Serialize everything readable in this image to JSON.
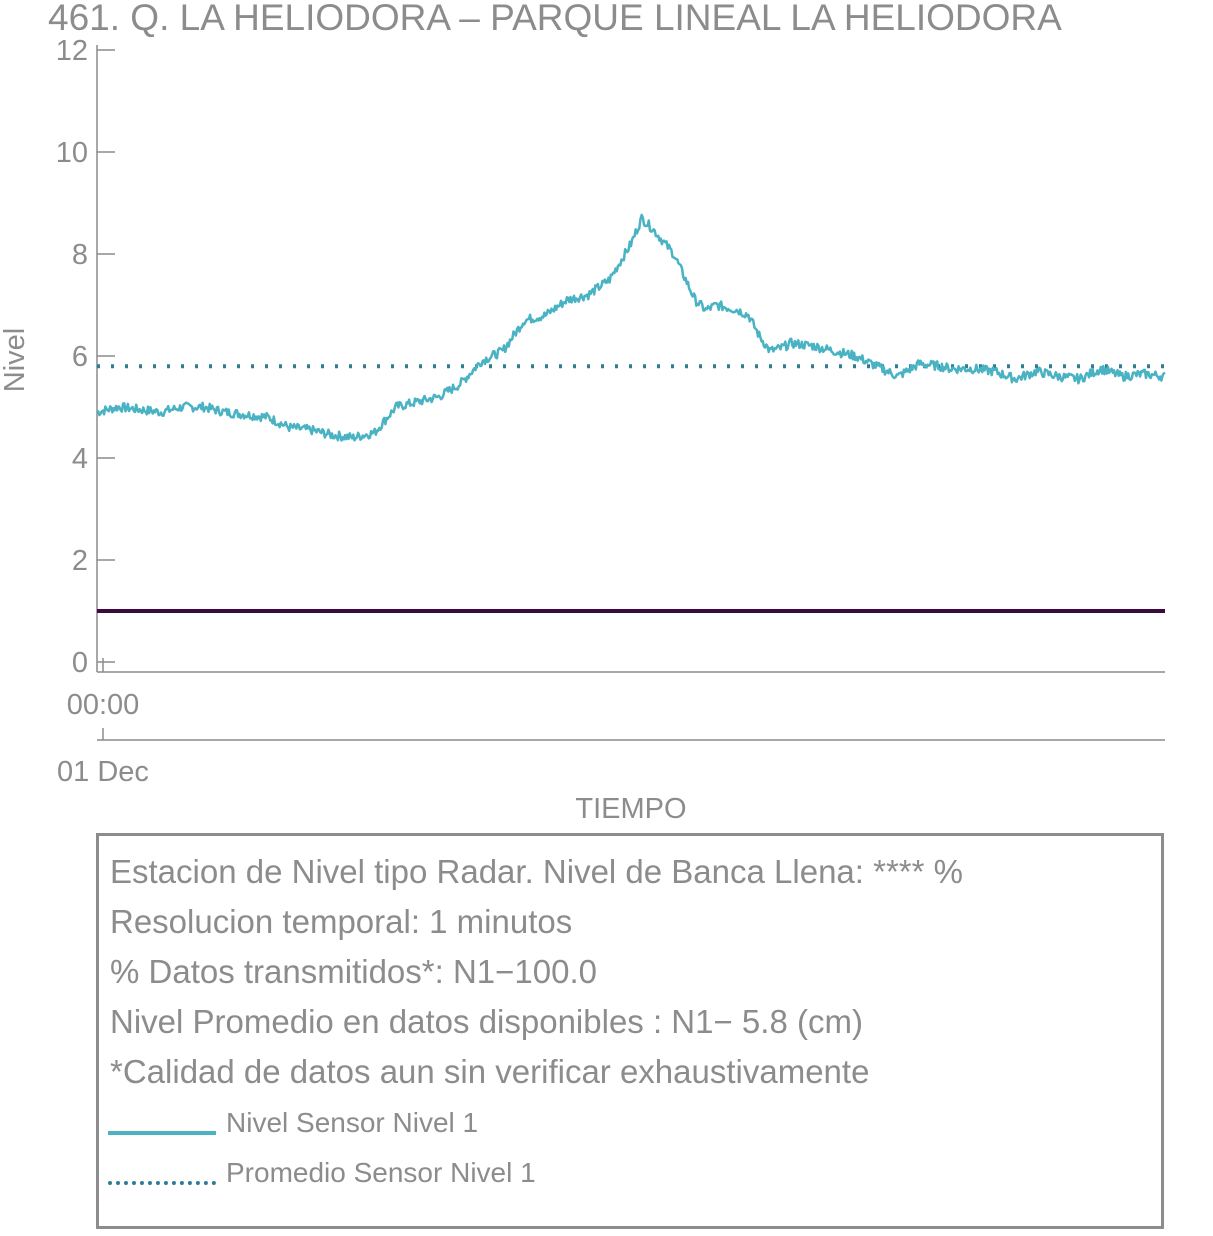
{
  "chart_data": {
    "type": "line",
    "title": "461. Q. LA HELIODORA – PARQUE LINEAL LA HELIODORA",
    "xlabel": "TIEMPO",
    "ylabel": "Nivel",
    "ylim": [
      0,
      12
    ],
    "yticks": [
      0,
      2,
      4,
      6,
      8,
      10,
      12
    ],
    "x_tick_time": "00:00",
    "x_tick_date": "01 Dec",
    "grid": false,
    "colors": {
      "sensor": "#4ab3c3",
      "average": "#2f7d93",
      "banca_llena": "#3d0a3f",
      "axis": "#8c8c8c"
    },
    "series": [
      {
        "name": "Nivel Sensor Nivel 1",
        "style": "solid",
        "x_fraction": [
          0.0,
          0.02,
          0.04,
          0.06,
          0.08,
          0.1,
          0.12,
          0.14,
          0.16,
          0.18,
          0.2,
          0.22,
          0.24,
          0.26,
          0.28,
          0.3,
          0.32,
          0.34,
          0.36,
          0.38,
          0.4,
          0.42,
          0.44,
          0.46,
          0.48,
          0.5,
          0.51,
          0.52,
          0.54,
          0.56,
          0.57,
          0.58,
          0.6,
          0.61,
          0.62,
          0.63,
          0.64,
          0.65,
          0.67,
          0.69,
          0.71,
          0.73,
          0.75,
          0.77,
          0.79,
          0.8,
          0.82,
          0.84,
          0.86,
          0.88,
          0.9,
          0.92,
          0.94,
          0.96,
          0.98,
          1.0
        ],
        "values": [
          4.9,
          5.0,
          4.95,
          4.9,
          5.0,
          5.0,
          4.9,
          4.85,
          4.8,
          4.6,
          4.55,
          4.45,
          4.4,
          4.5,
          5.0,
          5.1,
          5.2,
          5.45,
          5.9,
          6.1,
          6.7,
          6.8,
          7.1,
          7.2,
          7.5,
          8.2,
          8.7,
          8.5,
          8.0,
          7.1,
          6.9,
          7.0,
          6.9,
          6.8,
          6.4,
          6.1,
          6.15,
          6.25,
          6.2,
          6.1,
          6.0,
          5.8,
          5.6,
          5.85,
          5.8,
          5.75,
          5.75,
          5.7,
          5.55,
          5.7,
          5.6,
          5.55,
          5.75,
          5.6,
          5.65,
          5.6
        ]
      },
      {
        "name": "Promedio Sensor Nivel 1",
        "style": "dotted",
        "value": 5.8
      },
      {
        "style": "solid",
        "value": 1.0
      }
    ]
  },
  "legend": {
    "info_lines": [
      "Estacion de Nivel tipo Radar. Nivel de Banca Llena: **** %",
      "Resolucion temporal: 1 minutos",
      "% Datos transmitidos*: N1−100.0",
      "Nivel Promedio en datos disponibles : N1−  5.8 (cm)",
      "*Calidad de datos aun sin verificar exhaustivamente"
    ],
    "entries": [
      {
        "label": "Nivel Sensor Nivel 1",
        "style": "solid"
      },
      {
        "label": "Promedio Sensor Nivel 1",
        "style": "dotted"
      }
    ]
  }
}
